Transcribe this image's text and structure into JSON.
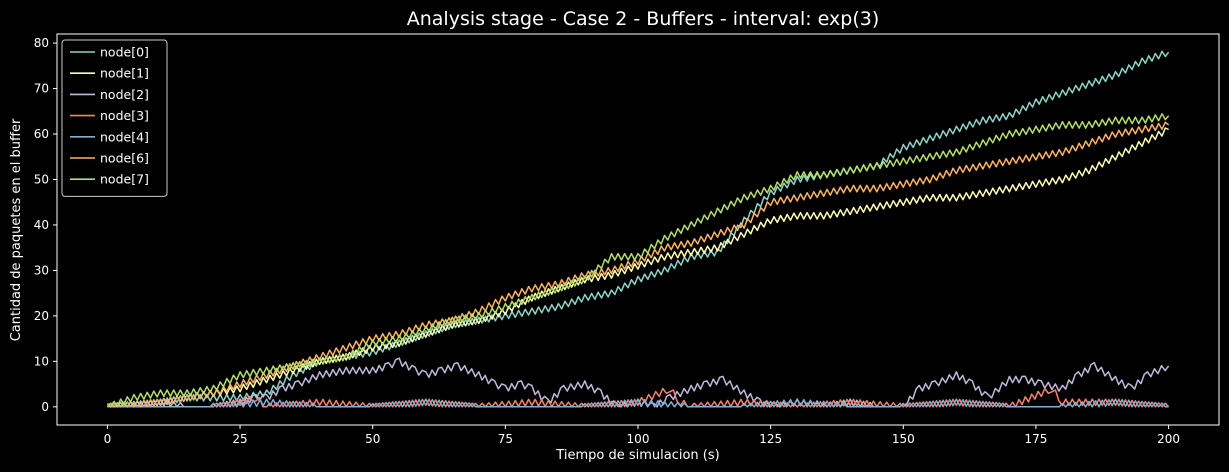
{
  "chart_data": {
    "type": "line",
    "title": "Analysis stage - Case 2 - Buffers - interval: exp(3)",
    "xlabel": "Tiempo de simulacion (s)",
    "ylabel": "Cantidad de paquetes en el buffer",
    "xlim": [
      -9.5,
      209.5
    ],
    "ylim": [
      -4,
      82
    ],
    "xticks": [
      0,
      25,
      50,
      75,
      100,
      125,
      150,
      175,
      200
    ],
    "yticks": [
      0,
      10,
      20,
      30,
      40,
      50,
      60,
      70,
      80
    ],
    "grid": false,
    "legend_position": "top-left",
    "background": "#000000",
    "foreground": "#ffffff",
    "series": [
      {
        "name": "node[0]",
        "color": "#8dd3c7",
        "x": [
          0,
          10,
          15,
          20,
          25,
          30,
          35,
          40,
          45,
          50,
          55,
          60,
          65,
          70,
          75,
          80,
          85,
          90,
          95,
          100,
          105,
          110,
          115,
          120,
          125,
          130,
          135,
          140,
          145,
          150,
          155,
          160,
          165,
          170,
          175,
          180,
          185,
          190,
          195,
          200
        ],
        "y": [
          0,
          1,
          2,
          2,
          2,
          3,
          7,
          10,
          11,
          12,
          14,
          16,
          18,
          19,
          20,
          21,
          22,
          24,
          25,
          28,
          30,
          33,
          34,
          41,
          47,
          50,
          51,
          52,
          53,
          57,
          59,
          61,
          63,
          64,
          67,
          69,
          71,
          73,
          76,
          78
        ]
      },
      {
        "name": "node[1]",
        "color": "#ffffb3",
        "x": [
          0,
          10,
          15,
          20,
          25,
          30,
          35,
          40,
          45,
          50,
          55,
          60,
          65,
          70,
          75,
          80,
          85,
          90,
          95,
          100,
          105,
          110,
          115,
          120,
          125,
          130,
          135,
          140,
          145,
          150,
          155,
          160,
          165,
          170,
          175,
          180,
          185,
          190,
          195,
          200
        ],
        "y": [
          0,
          1,
          2,
          3,
          4,
          6,
          8,
          10,
          11,
          13,
          14,
          16,
          18,
          19,
          21,
          24,
          26,
          28,
          29,
          31,
          33,
          34,
          35,
          38,
          41,
          42,
          42,
          43,
          44,
          45,
          46,
          46,
          47,
          48,
          49,
          50,
          52,
          55,
          58,
          61
        ]
      },
      {
        "name": "node[2]",
        "color": "#bebada",
        "x": [
          0,
          5,
          10,
          15,
          20,
          25,
          28,
          30,
          33,
          36,
          40,
          45,
          50,
          53,
          55,
          58,
          60,
          63,
          66,
          70,
          73,
          75,
          78,
          80,
          83,
          86,
          90,
          93,
          96,
          100,
          103,
          106,
          110,
          113,
          116,
          120,
          123,
          126,
          130,
          135,
          140,
          145,
          150,
          153,
          156,
          160,
          163,
          166,
          170,
          173,
          176,
          180,
          183,
          186,
          190,
          193,
          196,
          200
        ],
        "y": [
          0,
          0,
          1,
          0,
          0,
          1,
          2,
          2,
          4,
          5,
          7,
          8,
          8,
          9,
          10,
          8,
          7,
          8,
          9,
          7,
          5,
          4,
          5,
          4,
          1,
          4,
          5,
          3,
          0,
          1,
          0,
          2,
          4,
          5,
          6,
          3,
          1,
          0,
          1,
          0,
          1,
          0,
          0,
          4,
          5,
          7,
          5,
          2,
          6,
          6,
          5,
          4,
          7,
          9,
          6,
          4,
          7,
          9
        ]
      },
      {
        "name": "node[3]",
        "color": "#fb8072",
        "x": [
          0,
          10,
          20,
          25,
          28,
          30,
          40,
          50,
          60,
          70,
          80,
          90,
          100,
          104,
          106,
          108,
          110,
          120,
          130,
          140,
          150,
          160,
          170,
          176,
          178,
          180,
          190,
          200
        ],
        "y": [
          0,
          0,
          0,
          1,
          2,
          0,
          1,
          0,
          1,
          0,
          1,
          0,
          1,
          3,
          4,
          1,
          0,
          1,
          0,
          1,
          0,
          1,
          0,
          3,
          4,
          1,
          1,
          0
        ]
      },
      {
        "name": "node[4]",
        "color": "#80b1d3",
        "x": [
          0,
          10,
          20,
          30,
          40,
          50,
          60,
          70,
          80,
          90,
          100,
          110,
          120,
          130,
          140,
          150,
          160,
          170,
          180,
          190,
          200
        ],
        "y": [
          0,
          0,
          0,
          1,
          0,
          0,
          1,
          0,
          0,
          0,
          1,
          0,
          0,
          1,
          0,
          0,
          1,
          0,
          0,
          1,
          0
        ]
      },
      {
        "name": "node[6]",
        "color": "#fdb462",
        "x": [
          0,
          10,
          15,
          20,
          25,
          30,
          35,
          40,
          45,
          50,
          55,
          60,
          65,
          70,
          75,
          80,
          85,
          90,
          95,
          100,
          105,
          110,
          115,
          120,
          125,
          130,
          135,
          140,
          145,
          150,
          155,
          160,
          165,
          170,
          175,
          180,
          185,
          190,
          195,
          200
        ],
        "y": [
          0,
          1,
          2,
          3,
          5,
          7,
          9,
          11,
          13,
          15,
          16,
          18,
          19,
          21,
          24,
          26,
          27,
          29,
          30,
          32,
          35,
          36,
          38,
          40,
          45,
          46,
          47,
          48,
          48,
          49,
          50,
          52,
          53,
          54,
          55,
          56,
          58,
          60,
          61,
          62
        ]
      },
      {
        "name": "node[7]",
        "color": "#b3de69",
        "x": [
          0,
          5,
          10,
          15,
          20,
          25,
          30,
          35,
          40,
          45,
          50,
          55,
          60,
          65,
          70,
          75,
          80,
          85,
          90,
          95,
          100,
          105,
          110,
          115,
          120,
          125,
          130,
          135,
          140,
          145,
          150,
          155,
          160,
          165,
          170,
          175,
          180,
          185,
          190,
          195,
          200
        ],
        "y": [
          0,
          2,
          3,
          3,
          4,
          7,
          8,
          9,
          10,
          11,
          14,
          15,
          17,
          19,
          20,
          22,
          24,
          26,
          28,
          33,
          33,
          37,
          40,
          43,
          46,
          48,
          51,
          51,
          52,
          53,
          54,
          55,
          56,
          58,
          60,
          61,
          62,
          62,
          63,
          63,
          64
        ]
      }
    ]
  }
}
